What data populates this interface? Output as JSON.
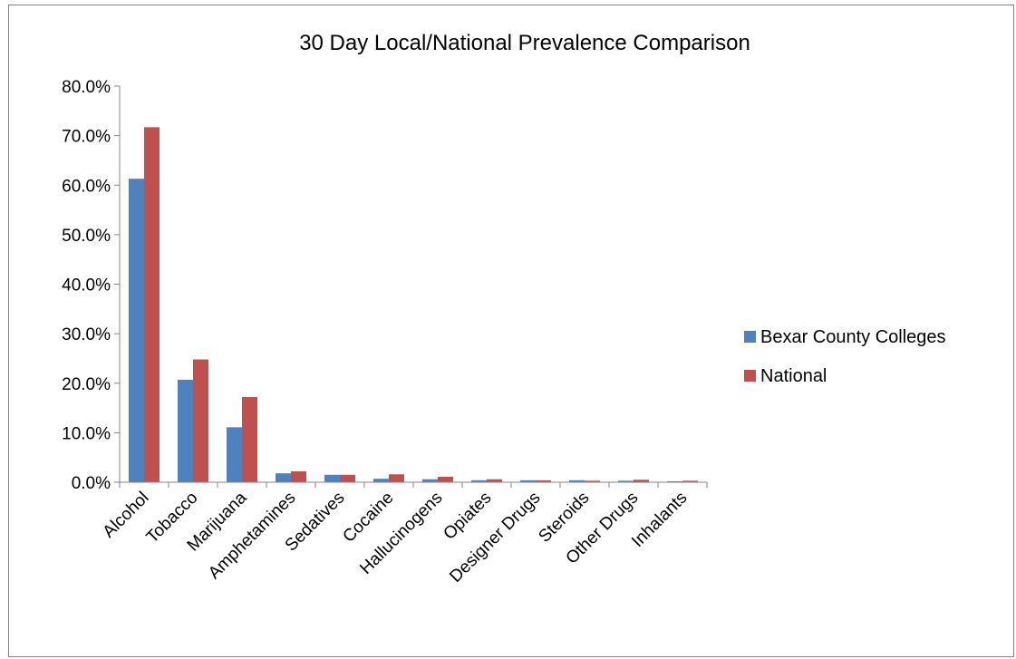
{
  "chart_data": {
    "type": "bar",
    "title": "30 Day Local/National Prevalence Comparison",
    "xlabel": "",
    "ylabel": "",
    "ylim": [
      0,
      80
    ],
    "yticks": [
      "0.0%",
      "10.0%",
      "20.0%",
      "30.0%",
      "40.0%",
      "50.0%",
      "60.0%",
      "70.0%",
      "80.0%"
    ],
    "categories": [
      "Alcohol",
      "Tobacco",
      "Marijuana",
      "Amphetamines",
      "Sedatives",
      "Cocaine",
      "Hallucinogens",
      "Opiates",
      "Designer Drugs",
      "Steroids",
      "Other Drugs",
      "Inhalants"
    ],
    "series": [
      {
        "name": "Bexar County Colleges",
        "color": "#4F81BD",
        "values": [
          61.3,
          20.7,
          11.1,
          1.8,
          1.5,
          0.7,
          0.6,
          0.4,
          0.4,
          0.4,
          0.3,
          0.2
        ]
      },
      {
        "name": "National",
        "color": "#C0504D",
        "values": [
          71.7,
          24.8,
          17.2,
          2.2,
          1.5,
          1.6,
          1.1,
          0.6,
          0.4,
          0.3,
          0.5,
          0.3
        ]
      }
    ],
    "legend_position": "right",
    "grid": false
  }
}
